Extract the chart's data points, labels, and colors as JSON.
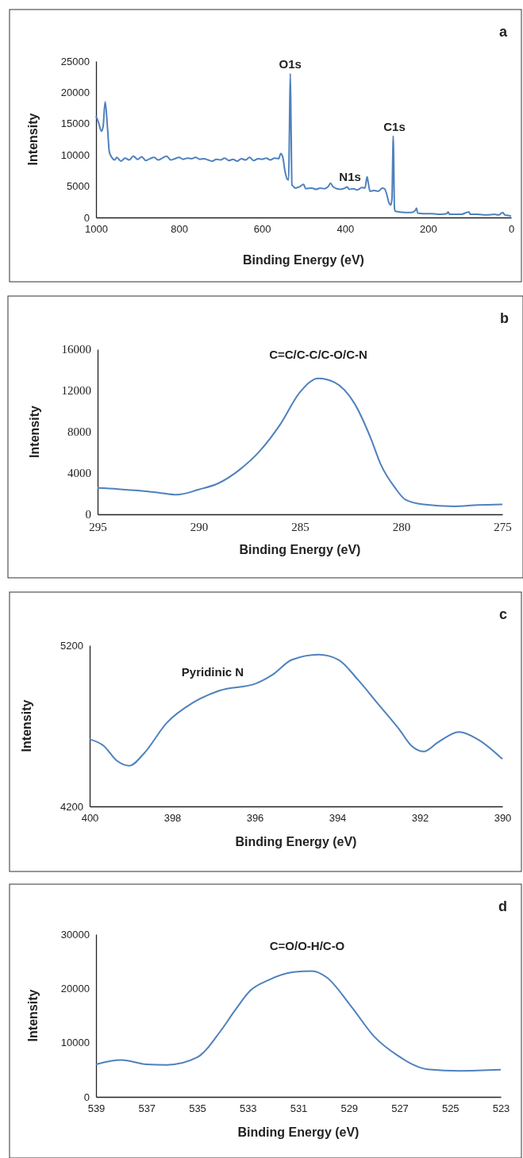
{
  "chart_data": [
    {
      "type": "line",
      "xlabel": "Binding Energy (eV)",
      "ylabel": "Intensity",
      "xlim": [
        1000,
        0
      ],
      "ylim": [
        0,
        25000
      ],
      "xticks": [
        1000,
        800,
        600,
        400,
        200,
        0
      ],
      "yticks": [
        0,
        5000,
        10000,
        15000,
        20000,
        25000
      ],
      "annotations": [
        "a",
        {
          "text": "O1s",
          "x": 532,
          "y": 23000
        },
        {
          "text": "N1s",
          "x": 388,
          "y": 5000
        },
        {
          "text": "C1s",
          "x": 281,
          "y": 13000
        }
      ],
      "x": [
        1000,
        994,
        987,
        983,
        978,
        972,
        968,
        962,
        955,
        950,
        940,
        930,
        920,
        910,
        900,
        890,
        880,
        870,
        860,
        850,
        840,
        830,
        820,
        810,
        800,
        790,
        780,
        770,
        760,
        750,
        740,
        730,
        720,
        710,
        700,
        690,
        680,
        670,
        660,
        650,
        640,
        630,
        620,
        610,
        600,
        590,
        580,
        570,
        560,
        555,
        550,
        545,
        540,
        536,
        534,
        532,
        530,
        528,
        525,
        520,
        510,
        500,
        495,
        480,
        470,
        460,
        450,
        440,
        435,
        430,
        420,
        410,
        400,
        395,
        390,
        380,
        370,
        360,
        352,
        347,
        344,
        340,
        330,
        320,
        310,
        305,
        300,
        295,
        290,
        287,
        285,
        284,
        283,
        281,
        279,
        270,
        250,
        240,
        230,
        228,
        225,
        210,
        190,
        170,
        155,
        152,
        148,
        120,
        102,
        98,
        80,
        60,
        40,
        30,
        20,
        15,
        5,
        0
      ],
      "series": [
        {
          "color": "#4f81bd",
          "values": [
            16200,
            15200,
            13800,
            14500,
            18500,
            14000,
            10500,
            9600,
            9200,
            9600,
            9000,
            9500,
            9200,
            9800,
            9300,
            9700,
            9100,
            9400,
            9600,
            9200,
            9500,
            9800,
            9200,
            9400,
            9600,
            9300,
            9500,
            9400,
            9600,
            9300,
            9400,
            9200,
            9000,
            9300,
            9200,
            9500,
            9100,
            9300,
            9000,
            9400,
            9200,
            9600,
            9100,
            9400,
            9300,
            9500,
            9200,
            9500,
            9400,
            10200,
            9600,
            7500,
            6200,
            6000,
            14000,
            23000,
            14000,
            5200,
            5000,
            4700,
            4900,
            5300,
            4600,
            4700,
            4500,
            4700,
            4600,
            5000,
            5500,
            5000,
            4600,
            4500,
            4700,
            4900,
            4500,
            4600,
            4400,
            4800,
            4700,
            6500,
            5500,
            4200,
            4300,
            4200,
            4700,
            4600,
            3800,
            2500,
            2000,
            3000,
            10000,
            13000,
            10000,
            1500,
            1000,
            900,
            800,
            800,
            1200,
            1500,
            700,
            600,
            600,
            500,
            600,
            900,
            500,
            500,
            900,
            500,
            500,
            400,
            500,
            400,
            800,
            400,
            300,
            200
          ]
        }
      ]
    },
    {
      "type": "line",
      "xlabel": "Binding Energy (eV)",
      "ylabel": "Intensity",
      "xlim": [
        295,
        275
      ],
      "ylim": [
        0,
        16000
      ],
      "xticks": [
        295,
        290,
        285,
        280,
        275
      ],
      "yticks": [
        0,
        4000,
        8000,
        12000,
        16000
      ],
      "annotations": [
        "b",
        "C=C/C-C/C-O/C-N"
      ],
      "x": [
        295,
        294,
        293,
        292,
        291.1,
        290,
        289,
        288,
        287,
        286,
        285,
        284.1,
        283.3,
        282.3,
        281.5,
        281,
        280.3,
        279.8,
        278.9,
        277.4,
        276.2,
        275
      ],
      "series": [
        {
          "color": "#4f81bd",
          "values": [
            2550,
            2450,
            2300,
            2100,
            1900,
            2400,
            3040,
            4300,
            6100,
            8640,
            11840,
            13180,
            12800,
            10720,
            7360,
            4800,
            2560,
            1440,
            960,
            770,
            900,
            960
          ]
        }
      ]
    },
    {
      "type": "line",
      "xlabel": "Binding Energy (eV)",
      "ylabel": "Intensity",
      "xlim": [
        400,
        390
      ],
      "ylim": [
        4200,
        5200
      ],
      "xticks": [
        400,
        398,
        396,
        394,
        392,
        390
      ],
      "yticks": [
        4200,
        5200
      ],
      "annotations": [
        "c",
        "Pyridinic N"
      ],
      "x": [
        400,
        399.66,
        399.34,
        399.04,
        398.7,
        398.13,
        397.5,
        396.85,
        395.97,
        395.57,
        395.1,
        394.45,
        393.97,
        393.5,
        393,
        392.5,
        392.2,
        391.9,
        391.57,
        391.05,
        390.6,
        390
      ],
      "series": [
        {
          "color": "#4f81bd",
          "values": [
            4617,
            4576,
            4483,
            4452,
            4524,
            4719,
            4843,
            4919,
            4963,
            5017,
            5110,
            5142,
            5110,
            4986,
            4832,
            4678,
            4576,
            4541,
            4596,
            4662,
            4617,
            4494
          ]
        }
      ]
    },
    {
      "type": "line",
      "xlabel": "Binding Energy (eV)",
      "ylabel": "Intensity",
      "xlim": [
        539,
        523
      ],
      "ylim": [
        0,
        30000
      ],
      "xticks": [
        539,
        537,
        535,
        533,
        531,
        529,
        527,
        525,
        523
      ],
      "yticks": [
        0,
        10000,
        20000,
        30000
      ],
      "annotations": [
        "d",
        "C=O/O-H/C-O"
      ],
      "x": [
        539,
        538,
        537,
        536.2,
        535,
        534.1,
        533.5,
        532.9,
        532.2,
        531.2,
        530.45,
        529.9,
        528.9,
        528,
        527.1,
        525.9,
        524.6,
        523
      ],
      "series": [
        {
          "color": "#4f81bd",
          "values": [
            6000,
            6800,
            6000,
            5900,
            7300,
            12000,
            16000,
            19600,
            21500,
            23000,
            23200,
            22100,
            16600,
            11100,
            7700,
            5100,
            4800,
            5000
          ]
        }
      ]
    }
  ]
}
